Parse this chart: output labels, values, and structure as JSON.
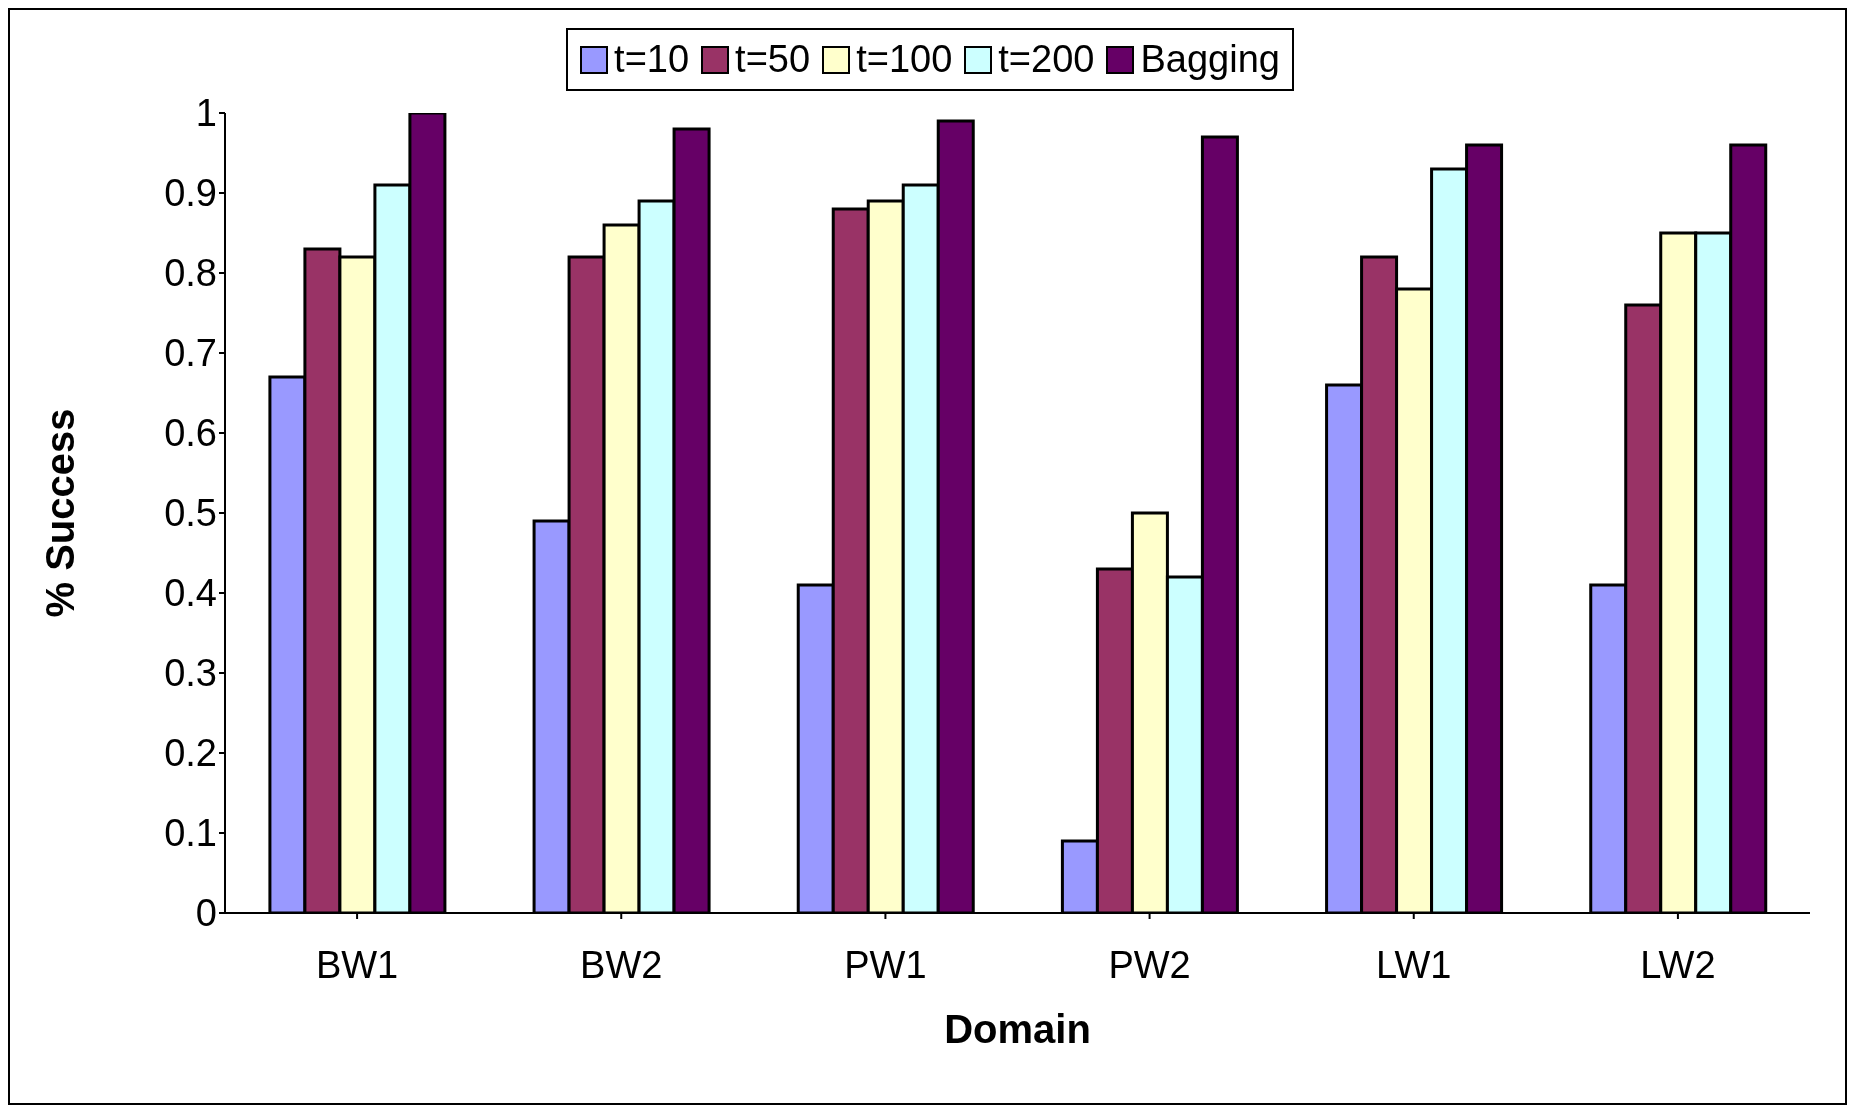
{
  "chart_data": {
    "type": "bar",
    "xlabel": "Domain",
    "ylabel": "% Success",
    "categories": [
      "BW1",
      "BW2",
      "PW1",
      "PW2",
      "LW1",
      "LW2"
    ],
    "series": [
      {
        "name": "t=10",
        "color": "#9999ff",
        "values": [
          0.67,
          0.49,
          0.41,
          0.09,
          0.66,
          0.41
        ]
      },
      {
        "name": "t=50",
        "color": "#993366",
        "values": [
          0.83,
          0.82,
          0.88,
          0.43,
          0.82,
          0.76
        ]
      },
      {
        "name": "t=100",
        "color": "#ffffcc",
        "values": [
          0.82,
          0.86,
          0.89,
          0.5,
          0.78,
          0.85
        ]
      },
      {
        "name": "t=200",
        "color": "#ccffff",
        "values": [
          0.91,
          0.89,
          0.91,
          0.42,
          0.93,
          0.85
        ]
      },
      {
        "name": "Bagging",
        "color": "#660066",
        "values": [
          1,
          0.98,
          0.99,
          0.97,
          0.96,
          0.96
        ]
      }
    ],
    "ylim": [
      0,
      1
    ],
    "yticks": [
      0,
      0.1,
      0.2,
      0.3,
      0.4,
      0.5,
      0.6,
      0.7,
      0.8,
      0.9,
      1
    ],
    "grid": false,
    "legend": "top"
  }
}
